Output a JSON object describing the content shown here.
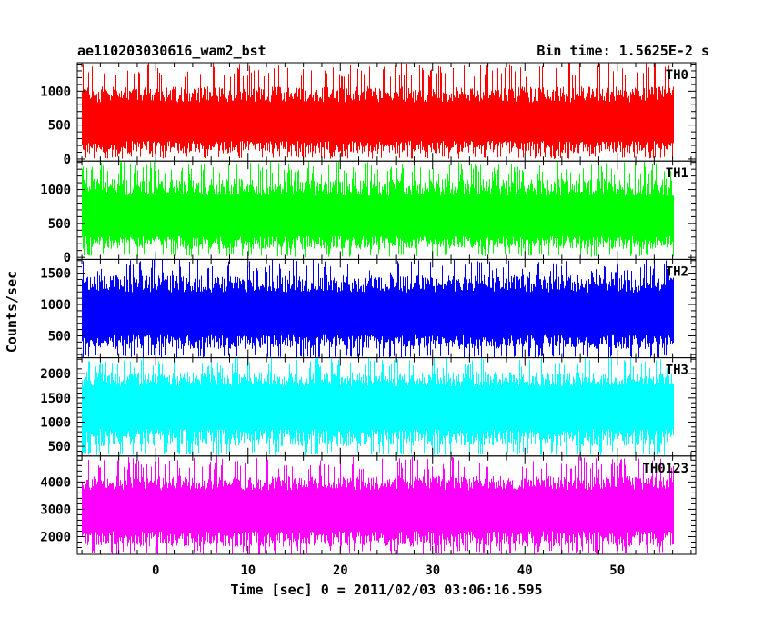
{
  "title": "ae110203030616_wam2_bst",
  "bin_time_label": "Bin time: 1.5625E-2 s",
  "chart_data": {
    "type": "line",
    "style": "dense binned light curve, vertical lines per bin",
    "xlabel": "Time [sec] 0 = 2011/02/03 03:06:16.595",
    "ylabel": "Counts/sec",
    "xlim": [
      -8.5,
      58.5
    ],
    "x_range_data": [
      -8,
      56
    ],
    "bin_time": 0.015625,
    "xticks": [
      0,
      10,
      20,
      30,
      40,
      50
    ],
    "xtick_labels": [
      "0",
      "10",
      "20",
      "30",
      "40",
      "50"
    ],
    "x_minor_step": 2,
    "panels": [
      {
        "name": "TH0",
        "color": "#ff0000",
        "ylim": [
          -30,
          1420
        ],
        "yticks": [
          0,
          500,
          1000
        ],
        "ytick_labels": [
          "0",
          "500",
          "1000"
        ],
        "y_minor_step": 100,
        "baseline": 550,
        "spread_low": 470,
        "spread_high": 520,
        "spike_high": 880,
        "dip_low": 40,
        "min": 0
      },
      {
        "name": "TH1",
        "color": "#00ff00",
        "ylim": [
          -30,
          1420
        ],
        "yticks": [
          0,
          500,
          1000
        ],
        "ytick_labels": [
          "0",
          "500",
          "1000"
        ],
        "y_minor_step": 100,
        "baseline": 600,
        "spread_low": 480,
        "spread_high": 560,
        "spike_high": 820,
        "dip_low": 60,
        "min": 0
      },
      {
        "name": "TH2",
        "color": "#0000ff",
        "ylim": [
          150,
          1720
        ],
        "yticks": [
          500,
          1000,
          1500
        ],
        "ytick_labels": [
          "500",
          "1000",
          "1500"
        ],
        "y_minor_step": 100,
        "baseline": 850,
        "spread_low": 560,
        "spread_high": 620,
        "spike_high": 880,
        "dip_low": 40,
        "min": 150
      },
      {
        "name": "TH3",
        "color": "#00ffff",
        "ylim": [
          300,
          2330
        ],
        "yticks": [
          500,
          1000,
          1500,
          2000
        ],
        "ytick_labels": [
          "500",
          "1000",
          "1500",
          "2000"
        ],
        "y_minor_step": 100,
        "baseline": 1380,
        "spread_low": 880,
        "spread_high": 660,
        "spike_high": 980,
        "dip_low": 100,
        "min": 300
      },
      {
        "name": "TH0123",
        "color": "#ff00ff",
        "ylim": [
          1350,
          4950
        ],
        "yticks": [
          2000,
          3000,
          4000
        ],
        "ytick_labels": [
          "2000",
          "3000",
          "4000"
        ],
        "y_minor_step": 200,
        "baseline": 3050,
        "spread_low": 1420,
        "spread_high": 1180,
        "spike_high": 1880,
        "dip_low": 140,
        "min": 1350
      }
    ]
  }
}
